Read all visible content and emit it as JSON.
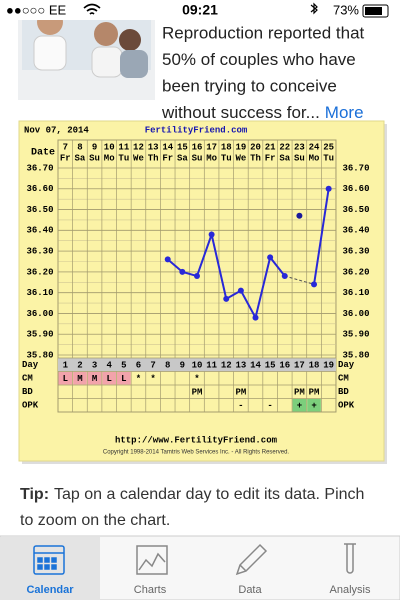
{
  "status_bar": {
    "carrier": "●●○○○ EE",
    "time": "09:21",
    "battery": "73%"
  },
  "article": {
    "lines": [
      "Reproduction reported that",
      "50% of couples who have",
      "been trying to conceive",
      "without success for..."
    ],
    "more": "More"
  },
  "chart": {
    "header_date": "Nov 07, 2014",
    "site": "FertilityFriend.com",
    "date_label": "Date",
    "dates": [
      "7",
      "8",
      "9",
      "10",
      "11",
      "12",
      "13",
      "14",
      "15",
      "16",
      "17",
      "18",
      "19",
      "20",
      "21",
      "22",
      "23",
      "24",
      "25"
    ],
    "weekdays": [
      "Fr",
      "Sa",
      "Su",
      "Mo",
      "Tu",
      "We",
      "Th",
      "Fr",
      "Sa",
      "Su",
      "Mo",
      "Tu",
      "We",
      "Th",
      "Fr",
      "Sa",
      "Su",
      "Mo",
      "Tu"
    ],
    "ylim": [
      35.8,
      36.7
    ],
    "yticks": [
      {
        "value": 36.7,
        "label": "36.70"
      },
      {
        "value": 36.6,
        "label": "36.60"
      },
      {
        "value": 36.5,
        "label": "36.50"
      },
      {
        "value": 36.4,
        "label": "36.40"
      },
      {
        "value": 36.3,
        "label": "36.30"
      },
      {
        "value": 36.2,
        "label": "36.20"
      },
      {
        "value": 36.1,
        "label": "36.10"
      },
      {
        "value": 36.0,
        "label": "36.00"
      },
      {
        "value": 35.9,
        "label": "35.90"
      },
      {
        "value": 35.8,
        "label": "35.80"
      }
    ],
    "series": [
      {
        "color": "#2828d8",
        "line": true,
        "values": [
          null,
          null,
          null,
          null,
          null,
          null,
          null,
          36.26,
          36.2,
          36.18,
          36.38,
          36.07,
          36.11,
          35.98,
          36.27,
          36.18,
          null,
          36.14,
          36.6
        ]
      },
      {
        "color": "#1a1a9a",
        "line": false,
        "values": [
          null,
          null,
          null,
          null,
          null,
          null,
          null,
          null,
          null,
          null,
          null,
          null,
          null,
          null,
          null,
          null,
          36.47,
          null,
          null
        ]
      }
    ],
    "rows": [
      {
        "label": "Day",
        "cells": [
          "1",
          "2",
          "3",
          "4",
          "5",
          "6",
          "7",
          "8",
          "9",
          "10",
          "11",
          "12",
          "13",
          "14",
          "15",
          "16",
          "17",
          "18",
          "19"
        ]
      },
      {
        "label": "CM",
        "cells": [
          "L",
          "M",
          "M",
          "L",
          "L",
          "*",
          "*",
          null,
          null,
          "*",
          null,
          null,
          null,
          null,
          null,
          null,
          null,
          null,
          null
        ],
        "fills": [
          "#f2a3ab",
          "#f2a3ab",
          "#f2a3ab",
          "#f2a3ab",
          "#f2a3ab",
          null,
          null,
          null,
          null,
          null,
          null,
          null,
          null,
          null,
          null,
          null,
          null,
          null,
          null
        ]
      },
      {
        "label": "BD",
        "cells": [
          null,
          null,
          null,
          null,
          null,
          null,
          null,
          null,
          null,
          "PM",
          null,
          null,
          "PM",
          null,
          null,
          null,
          "PM",
          "PM",
          null
        ]
      },
      {
        "label": "OPK",
        "cells": [
          null,
          null,
          null,
          null,
          null,
          null,
          null,
          null,
          null,
          null,
          null,
          null,
          "-",
          null,
          "-",
          null,
          "+",
          "+",
          null
        ],
        "fills": [
          null,
          null,
          null,
          null,
          null,
          null,
          null,
          null,
          null,
          null,
          null,
          null,
          null,
          null,
          null,
          null,
          "#7ccf7c",
          "#7ccf7c",
          null
        ]
      }
    ],
    "url": "http://www.FertilityFriend.com",
    "copyright": "Copyright 1998-2014 Tamtris Web Services Inc. - All Rights Reserved."
  },
  "tip": {
    "label": "Tip:",
    "text_lines": [
      "Tap on a calendar day to edit its data. Pinch",
      "to zoom on the chart."
    ]
  },
  "tabs": [
    "Calendar",
    "Charts",
    "Data",
    "Analysis"
  ]
}
